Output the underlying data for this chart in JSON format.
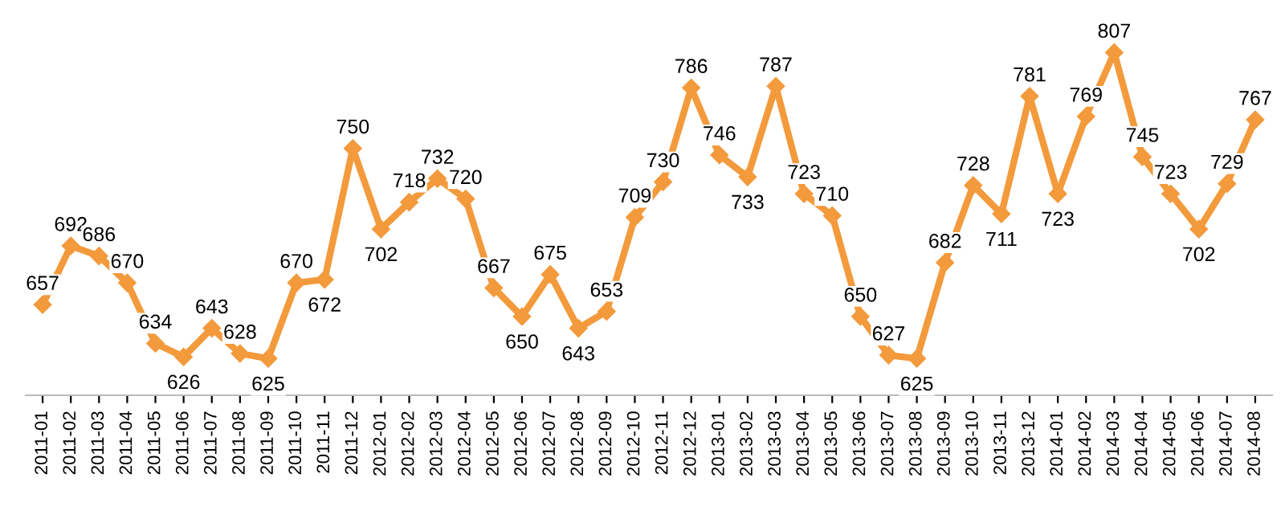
{
  "chart_data": {
    "type": "line",
    "categories": [
      "2011-01",
      "2011-02",
      "2011-03",
      "2011-04",
      "2011-05",
      "2011-06",
      "2011-07",
      "2011-08",
      "2011-09",
      "2011-10",
      "2011-11",
      "2011-12",
      "2012-01",
      "2012-02",
      "2012-03",
      "2012-04",
      "2012-05",
      "2012-06",
      "2012-07",
      "2012-08",
      "2012-09",
      "2012-10",
      "2012-11",
      "2012-12",
      "2013-01",
      "2013-02",
      "2013-03",
      "2013-04",
      "2013-05",
      "2013-06",
      "2013-07",
      "2013-08",
      "2013-09",
      "2013-10",
      "2013-11",
      "2013-12",
      "2014-01",
      "2014-02",
      "2014-03",
      "2014-04",
      "2014-05",
      "2014-06",
      "2014-07",
      "2014-08"
    ],
    "series": [
      {
        "color": "#f39a3c",
        "values": [
          657,
          692,
          686,
          670,
          634,
          626,
          643,
          628,
          625,
          670,
          672,
          750,
          702,
          718,
          732,
          720,
          667,
          650,
          675,
          643,
          653,
          709,
          730,
          786,
          746,
          733,
          787,
          723,
          710,
          650,
          627,
          625,
          682,
          728,
          711,
          781,
          723,
          769,
          807,
          745,
          723,
          702,
          729,
          767
        ]
      }
    ],
    "marker": "diamond",
    "line_style": "solid",
    "data_labels": true,
    "grid": false,
    "legend": false,
    "tick_labels": "x"
  }
}
